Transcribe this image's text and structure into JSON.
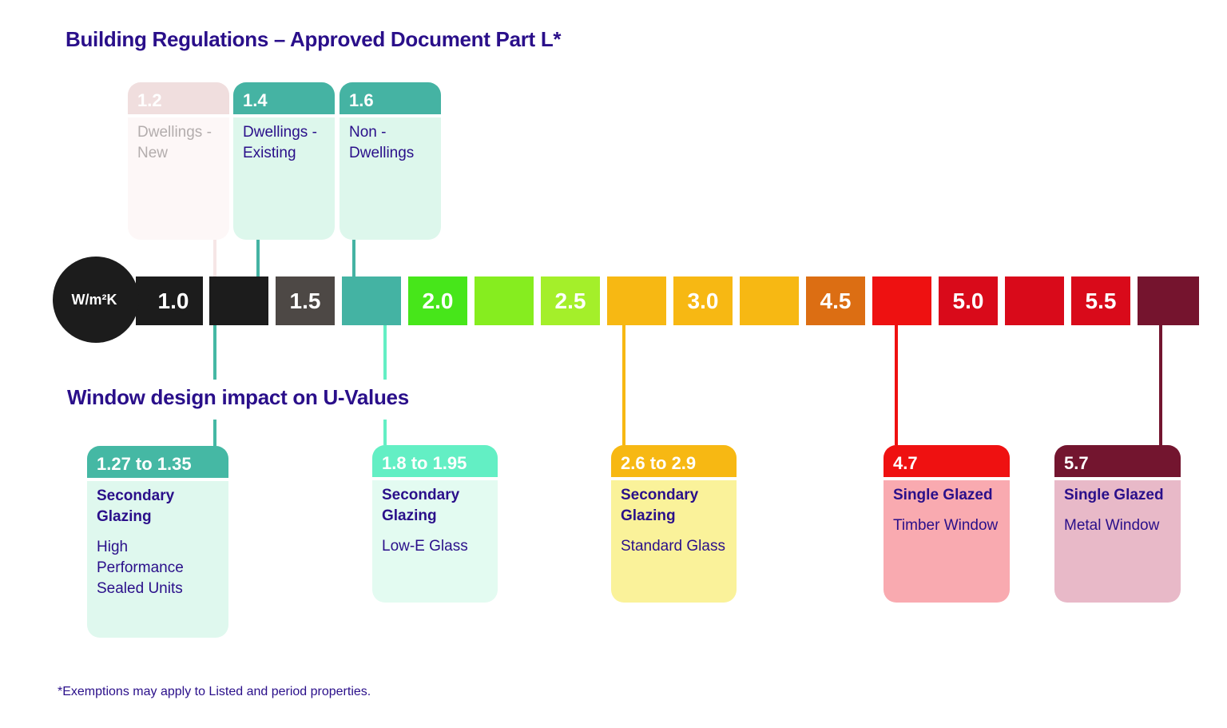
{
  "title": "Building Regulations – Approved Document Part L*",
  "subtitle": "Window design impact on U-Values",
  "unit": "W/m²K",
  "footnote": "*Exemptions may apply to Listed and period properties.",
  "scale": [
    {
      "label": "1.0",
      "color": "#1c1c1c"
    },
    {
      "label": "",
      "color": "#1c1c1c"
    },
    {
      "label": "1.5",
      "color": "#4d4845"
    },
    {
      "label": "",
      "color": "#44b3a3"
    },
    {
      "label": "2.0",
      "color": "#47e61a"
    },
    {
      "label": "",
      "color": "#86ed1f"
    },
    {
      "label": "2.5",
      "color": "#a4ef2a"
    },
    {
      "label": "",
      "color": "#f7b813"
    },
    {
      "label": "3.0",
      "color": "#f7b813"
    },
    {
      "label": "",
      "color": "#f7b813"
    },
    {
      "label": "4.5",
      "color": "#dc6e13"
    },
    {
      "label": "",
      "color": "#ee1111"
    },
    {
      "label": "5.0",
      "color": "#d90a1a"
    },
    {
      "label": "",
      "color": "#d90a1a"
    },
    {
      "label": "5.5",
      "color": "#d90a1a"
    },
    {
      "label": "",
      "color": "#75142e"
    }
  ],
  "regulations": [
    {
      "value": "1.2",
      "text": "Dwellings - New",
      "header_color": "#f0dede",
      "body_color": "#fdf7f7",
      "faded": true
    },
    {
      "value": "1.4",
      "text": "Dwellings - Existing",
      "header_color": "#45b3a3",
      "body_color": "#ddf7ec",
      "faded": false
    },
    {
      "value": "1.6",
      "text": "Non - Dwellings",
      "header_color": "#45b3a3",
      "body_color": "#ddf7ec",
      "faded": false
    }
  ],
  "windows": [
    {
      "value": "1.27 to 1.35",
      "type": "Secondary Glazing",
      "desc": "High Performance Sealed Units",
      "header_color": "#45b8a4",
      "body_color": "#dff8ee"
    },
    {
      "value": "1.8 to 1.95",
      "type": "Secondary Glazing",
      "desc": "Low-E Glass",
      "header_color": "#63efc4",
      "body_color": "#e3fbf1"
    },
    {
      "value": "2.6 to 2.9",
      "type": "Secondary Glazing",
      "desc": "Standard Glass",
      "header_color": "#f7b813",
      "body_color": "#faf29a"
    },
    {
      "value": "4.7",
      "type": "Single Glazed",
      "desc": "Timber Window",
      "header_color": "#ef1111",
      "body_color": "#f9aab0"
    },
    {
      "value": "5.7",
      "type": "Single Glazed",
      "desc": "Metal Window",
      "header_color": "#73152f",
      "body_color": "#e8b9c8"
    }
  ]
}
